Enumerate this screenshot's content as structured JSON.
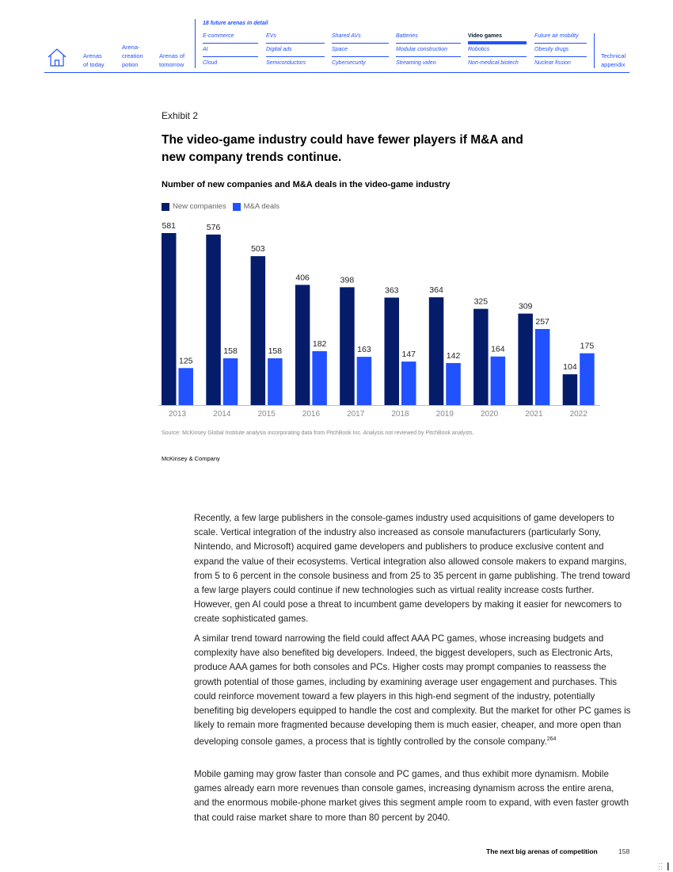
{
  "nav": {
    "home_icon": "house-icon",
    "left_items": [
      {
        "label": "Arenas\nof today"
      },
      {
        "label": "Arena-\ncreation\npotion"
      },
      {
        "label": "Arenas of\ntomorrow"
      }
    ],
    "detail_title": "18 future arenas in detail",
    "arenas": [
      [
        "E-commerce",
        "AI",
        "Cloud"
      ],
      [
        "EVs",
        "Digital ads",
        "Semiconductors"
      ],
      [
        "Shared AVs",
        "Space",
        "Cybersecurity"
      ],
      [
        "Batteries",
        "Modular construction",
        "Streaming video"
      ],
      [
        "Video games",
        "Robotics",
        "Non-medical biotech"
      ],
      [
        "Future air mobility",
        "Obesity drugs",
        "Nuclear fission"
      ]
    ],
    "active_arena": "Video games",
    "appendix_label": "Technical\nappendix"
  },
  "exhibit": {
    "label": "Exhibit 2",
    "title": "The video-game industry could have fewer players if M&A and new company trends continue.",
    "subtitle": "Number of new companies and M&A deals in the video-game industry",
    "source": "Source: McKinsey Global Institute analysis incorporating data from PitchBook Inc. Analysis not reviewed by PitchBook analysts.",
    "brand": "McKinsey & Company"
  },
  "chart_data": {
    "type": "bar",
    "categories": [
      "2013",
      "2014",
      "2015",
      "2016",
      "2017",
      "2018",
      "2019",
      "2020",
      "2021",
      "2022"
    ],
    "series": [
      {
        "name": "New companies",
        "color": "#051c6b",
        "values": [
          581,
          576,
          503,
          406,
          398,
          363,
          364,
          325,
          309,
          104
        ]
      },
      {
        "name": "M&A deals",
        "color": "#2251ff",
        "values": [
          125,
          158,
          158,
          182,
          163,
          147,
          142,
          164,
          257,
          175
        ]
      }
    ],
    "title": "Number of new companies and M&A deals in the video-game industry",
    "xlabel": "",
    "ylabel": "",
    "ylim": [
      0,
      581
    ],
    "legend": "top-left",
    "grid": false,
    "data_labels": true
  },
  "body": {
    "paragraphs": [
      "Recently, a few large publishers in the console-games industry used acquisitions of game developers to scale. Vertical integration of the industry also increased as console manufacturers (particularly Sony, Nintendo, and Microsoft) acquired game developers and publishers to produce exclusive content and expand the value of their ecosystems. Vertical integration also allowed console makers to expand margins, from 5 to 6 percent in the console business and from 25 to 35 percent in game publishing. The trend toward a few large players could continue if new technologies such as virtual reality increase costs further. However, gen AI could pose a threat to incumbent game developers by making it easier for newcomers to create sophisticated games.",
      "A similar trend toward narrowing the field could affect AAA PC games, whose increasing budgets and complexity have also benefited big developers. Indeed, the biggest developers, such as Electronic Arts, produce AAA games for both consoles and PCs. Higher costs may prompt companies to reassess the growth potential of those games, including by examining average user engagement and purchases. This could reinforce movement toward a few players in this high-end segment of the industry, potentially benefiting big developers equipped to handle the cost and complexity. But the market for other PC games is likely to remain more fragmented because developing them is much easier, cheaper, and more open than developing console games, a process that is tightly controlled by the console company.",
      "Mobile gaming may grow faster than console and PC games, and thus exhibit more dynamism. Mobile games already earn more revenues than console games, increasing dynamism across the entire arena, and the enormous mobile-phone market gives this segment ample room to expand, with even faster growth that could raise market share to more than 80 percent by 2040."
    ],
    "footnote_ref": "264"
  },
  "footer": {
    "title": "The next big arenas of competition",
    "page": "158"
  }
}
